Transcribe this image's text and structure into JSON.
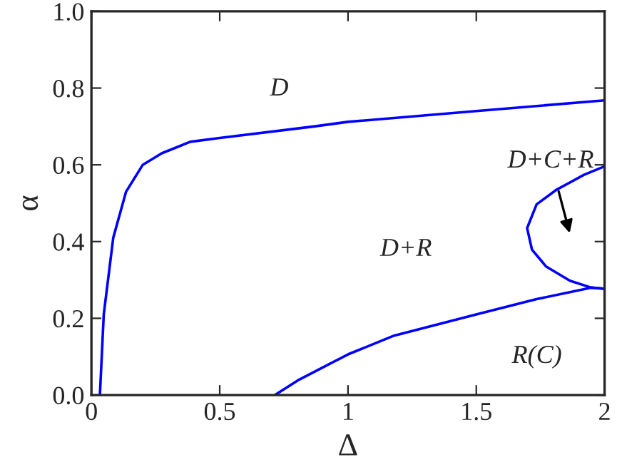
{
  "chart_data": {
    "type": "line",
    "xlabel": "Δ",
    "ylabel": "α",
    "xlim": [
      0,
      2
    ],
    "ylim": [
      0,
      1.0
    ],
    "xticks": [
      0,
      0.5,
      1,
      1.5,
      2
    ],
    "yticks": [
      {
        "value": 0,
        "label": "0.0"
      },
      {
        "value": 0.2,
        "label": "0.2"
      },
      {
        "value": 0.4,
        "label": "0.4"
      },
      {
        "value": 0.6,
        "label": "0.6"
      },
      {
        "value": 0.8,
        "label": "0.8"
      },
      {
        "value": 1.0,
        "label": "1.0"
      }
    ],
    "grid": false,
    "legend": false,
    "marker": "none",
    "line_style": "solid",
    "series": [
      {
        "color": "#0000ff",
        "x": [
          0.033,
          0.048,
          0.085,
          0.135,
          0.2,
          0.274,
          0.385,
          0.5,
          0.867,
          1,
          1.5,
          2
        ],
        "values": [
          0,
          0.21,
          0.41,
          0.53,
          0.6,
          0.63,
          0.66,
          0.67,
          0.7,
          0.712,
          0.74,
          0.768
        ]
      },
      {
        "color": "#0000ff",
        "x": [
          0.715,
          0.809,
          1,
          1.18,
          1.5,
          1.735,
          1.948,
          2
        ],
        "values": [
          0,
          0.04,
          0.106,
          0.155,
          0.21,
          0.25,
          0.28,
          0.277
        ]
      },
      {
        "color": "#0000ff",
        "x": [
          2,
          1.92,
          1.81,
          1.735,
          1.698,
          1.717,
          1.772,
          1.865,
          1.948,
          2
        ],
        "values": [
          0.596,
          0.574,
          0.534,
          0.497,
          0.435,
          0.379,
          0.335,
          0.298,
          0.28,
          0.277
        ]
      }
    ],
    "annotations": [
      "D",
      "D+R",
      "D+C+R",
      "R(C)"
    ]
  }
}
